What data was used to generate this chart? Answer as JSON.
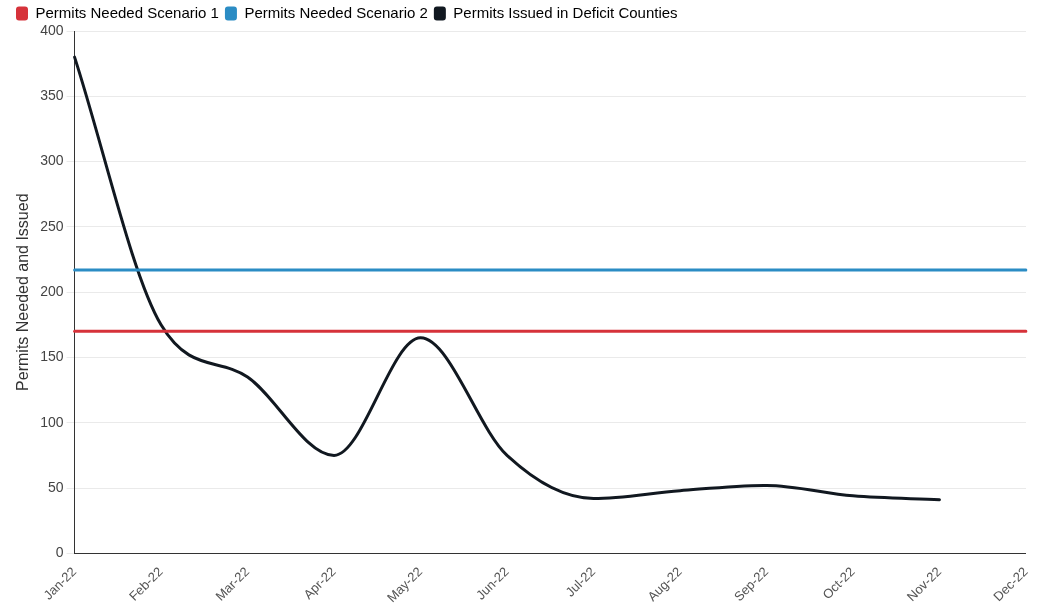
{
  "chart_data": {
    "type": "line",
    "ylabel": "Permits Needed and Issued",
    "categories": [
      "Jan-22",
      "Feb-22",
      "Mar-22",
      "Apr-22",
      "May-22",
      "Jun-22",
      "Jul-22",
      "Aug-22",
      "Sep-22",
      "Oct-22",
      "Nov-22",
      "Dec-22"
    ],
    "series": [
      {
        "name": "Permits Needed Scenario 1",
        "color": "#d6323a",
        "values": [
          170,
          170,
          170,
          170,
          170,
          170,
          170,
          170,
          170,
          170,
          170,
          170
        ]
      },
      {
        "name": "Permits Needed Scenario 2",
        "color": "#2b8cc4",
        "values": [
          217,
          217,
          217,
          217,
          217,
          217,
          217,
          217,
          217,
          217,
          217,
          217
        ]
      },
      {
        "name": "Permits Issued in Deficit Counties",
        "color": "#111820",
        "values": [
          380,
          175,
          135,
          75,
          165,
          75,
          42,
          48,
          52,
          44,
          41,
          null
        ]
      }
    ],
    "ylim": [
      0,
      400
    ],
    "yticks": [
      0,
      50,
      100,
      150,
      200,
      250,
      300,
      350,
      400
    ],
    "grid": "y",
    "legend": "top left",
    "marker": "none",
    "line_style": "solid"
  }
}
